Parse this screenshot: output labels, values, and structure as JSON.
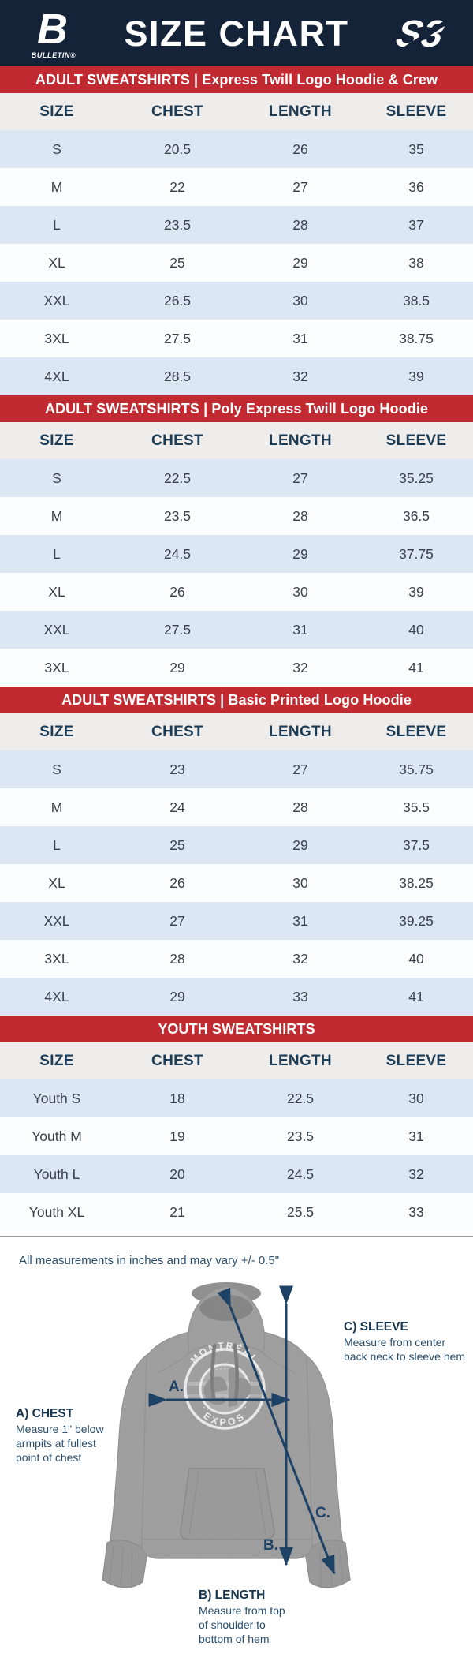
{
  "header": {
    "title": "SIZE CHART",
    "bulletin_glyph": "B",
    "bulletin_wordmark": "BULLETIN®",
    "partner_glyph": "S3"
  },
  "columns": [
    "SIZE",
    "CHEST",
    "LENGTH",
    "SLEEVE"
  ],
  "sections": [
    {
      "title": "ADULT SWEATSHIRTS | Express Twill Logo Hoodie & Crew",
      "rows": [
        [
          "S",
          "20.5",
          "26",
          "35"
        ],
        [
          "M",
          "22",
          "27",
          "36"
        ],
        [
          "L",
          "23.5",
          "28",
          "37"
        ],
        [
          "XL",
          "25",
          "29",
          "38"
        ],
        [
          "XXL",
          "26.5",
          "30",
          "38.5"
        ],
        [
          "3XL",
          "27.5",
          "31",
          "38.75"
        ],
        [
          "4XL",
          "28.5",
          "32",
          "39"
        ]
      ]
    },
    {
      "title": "ADULT SWEATSHIRTS | Poly Express Twill Logo Hoodie",
      "rows": [
        [
          "S",
          "22.5",
          "27",
          "35.25"
        ],
        [
          "M",
          "23.5",
          "28",
          "36.5"
        ],
        [
          "L",
          "24.5",
          "29",
          "37.75"
        ],
        [
          "XL",
          "26",
          "30",
          "39"
        ],
        [
          "XXL",
          "27.5",
          "31",
          "40"
        ],
        [
          "3XL",
          "29",
          "32",
          "41"
        ]
      ]
    },
    {
      "title": "ADULT SWEATSHIRTS | Basic Printed Logo Hoodie",
      "rows": [
        [
          "S",
          "23",
          "27",
          "35.75"
        ],
        [
          "M",
          "24",
          "28",
          "35.5"
        ],
        [
          "L",
          "25",
          "29",
          "37.5"
        ],
        [
          "XL",
          "26",
          "30",
          "38.25"
        ],
        [
          "XXL",
          "27",
          "31",
          "39.25"
        ],
        [
          "3XL",
          "28",
          "32",
          "40"
        ],
        [
          "4XL",
          "29",
          "33",
          "41"
        ]
      ]
    },
    {
      "title": "YOUTH SWEATSHIRTS",
      "rows": [
        [
          "Youth S",
          "18",
          "22.5",
          "30"
        ],
        [
          "Youth M",
          "19",
          "23.5",
          "31"
        ],
        [
          "Youth L",
          "20",
          "24.5",
          "32"
        ],
        [
          "Youth XL",
          "21",
          "25.5",
          "33"
        ]
      ]
    }
  ],
  "note": "All measurements in inches and may vary +/- 0.5\"",
  "diagram": {
    "shirt_logo_top": "MONTRÉAL",
    "shirt_logo_bottom": "EXPOS",
    "arrows": {
      "a": "A.",
      "b": "B.",
      "c": "C."
    },
    "chest": {
      "title": "A) CHEST",
      "line1": "Measure 1\" below",
      "line2": "armpits at fullest",
      "line3": "point of chest"
    },
    "length": {
      "title": "B) LENGTH",
      "line1": "Measure from top",
      "line2": "of shoulder to",
      "line3": "bottom of hem"
    },
    "sleeve": {
      "title": "C) SLEEVE",
      "line1": "Measure from center",
      "line2": "back neck to sleeve hem"
    }
  },
  "colors": {
    "navy": "#152338",
    "red": "#c02a30",
    "row_blue": "#dbe7f2",
    "row_white": "#fcfdfe",
    "thead_bg": "#efedeb",
    "thead_text": "#1c3b55",
    "cell_text": "#39404a",
    "label_text": "#2a4f6d",
    "arrow": "#1e4265"
  }
}
